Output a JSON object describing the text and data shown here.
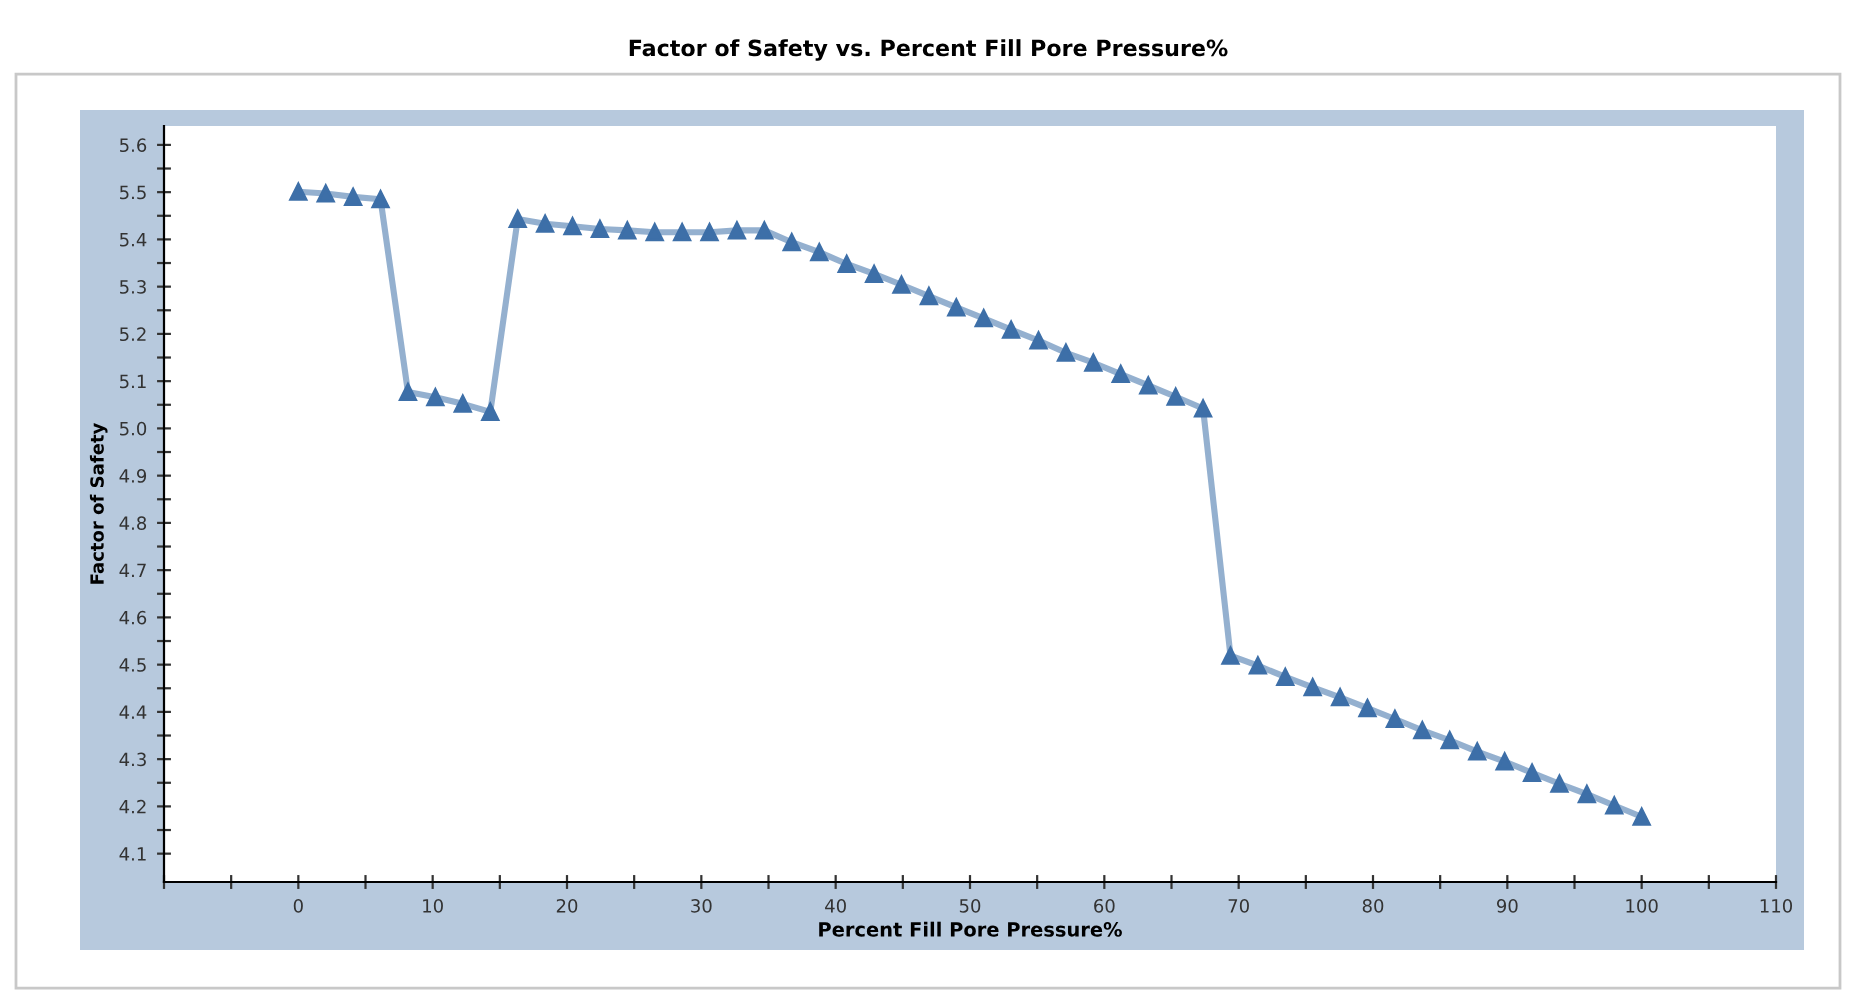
{
  "chart_data": {
    "type": "line",
    "title": "Factor of Safety vs. Percent Fill Pore Pressure%",
    "xlabel": "Percent Fill Pore Pressure%",
    "ylabel": "Factor of Safety",
    "series": [
      {
        "color": "#3d6fa8",
        "x": [
          0,
          2.04,
          4.08,
          6.12,
          8.16,
          10.2,
          12.24,
          14.29,
          16.33,
          18.37,
          20.41,
          22.45,
          24.49,
          26.53,
          28.57,
          30.61,
          32.65,
          34.69,
          36.73,
          38.78,
          40.82,
          42.86,
          44.9,
          46.94,
          48.98,
          51.02,
          53.06,
          55.1,
          57.14,
          59.18,
          61.22,
          63.27,
          65.31,
          67.35,
          69.39,
          71.43,
          73.47,
          75.51,
          77.55,
          79.59,
          81.63,
          83.67,
          85.71,
          87.76,
          89.8,
          91.84,
          93.88,
          95.92,
          97.96,
          100
        ],
        "values": [
          5.501,
          5.497,
          5.49,
          5.485,
          5.077,
          5.066,
          5.052,
          5.035,
          5.443,
          5.433,
          5.428,
          5.422,
          5.419,
          5.415,
          5.415,
          5.415,
          5.419,
          5.419,
          5.394,
          5.373,
          5.348,
          5.327,
          5.304,
          5.28,
          5.256,
          5.233,
          5.209,
          5.186,
          5.16,
          5.139,
          5.115,
          5.091,
          5.067,
          5.042,
          4.519,
          4.498,
          4.474,
          4.452,
          4.431,
          4.408,
          4.385,
          4.361,
          4.34,
          4.316,
          4.295,
          4.271,
          4.248,
          4.226,
          4.202,
          4.178
        ]
      }
    ],
    "xlim": [
      -10,
      110
    ],
    "xticks": [
      {
        "value": -10,
        "label": null
      },
      {
        "value": -5,
        "label": null
      },
      0,
      {
        "value": 5,
        "label": null
      },
      10,
      {
        "value": 15,
        "label": null
      },
      20,
      {
        "value": 25,
        "label": null
      },
      30,
      {
        "value": 35,
        "label": null
      },
      40,
      {
        "value": 45,
        "label": null
      },
      50,
      {
        "value": 55,
        "label": null
      },
      60,
      {
        "value": 65,
        "label": null
      },
      70,
      {
        "value": 75,
        "label": null
      },
      80,
      {
        "value": 85,
        "label": null
      },
      90,
      {
        "value": 95,
        "label": null
      },
      100,
      {
        "value": 105,
        "label": null
      },
      110
    ],
    "ylim": [
      4.04,
      5.64
    ],
    "yticks": [
      4.1,
      {
        "value": 4.15,
        "label": null
      },
      4.2,
      {
        "value": 4.25,
        "label": null
      },
      4.3,
      {
        "value": 4.35,
        "label": null
      },
      4.4,
      {
        "value": 4.45,
        "label": null
      },
      4.5,
      {
        "value": 4.55,
        "label": null
      },
      4.6,
      {
        "value": 4.65,
        "label": null
      },
      4.7,
      {
        "value": 4.75,
        "label": null
      },
      4.8,
      {
        "value": 4.85,
        "label": null
      },
      4.9,
      {
        "value": 4.95,
        "label": null
      },
      {
        "value": 5.0,
        "label": "5.0"
      },
      {
        "value": 5.05,
        "label": null
      },
      5.1,
      {
        "value": 5.15,
        "label": null
      },
      5.2,
      {
        "value": 5.25,
        "label": null
      },
      5.3,
      {
        "value": 5.35,
        "label": null
      },
      5.4,
      {
        "value": 5.45,
        "label": null
      },
      5.5,
      {
        "value": 5.55,
        "label": null
      },
      5.6
    ],
    "grid": false,
    "legend": false,
    "marker": "triangle",
    "line_style": "solid"
  }
}
